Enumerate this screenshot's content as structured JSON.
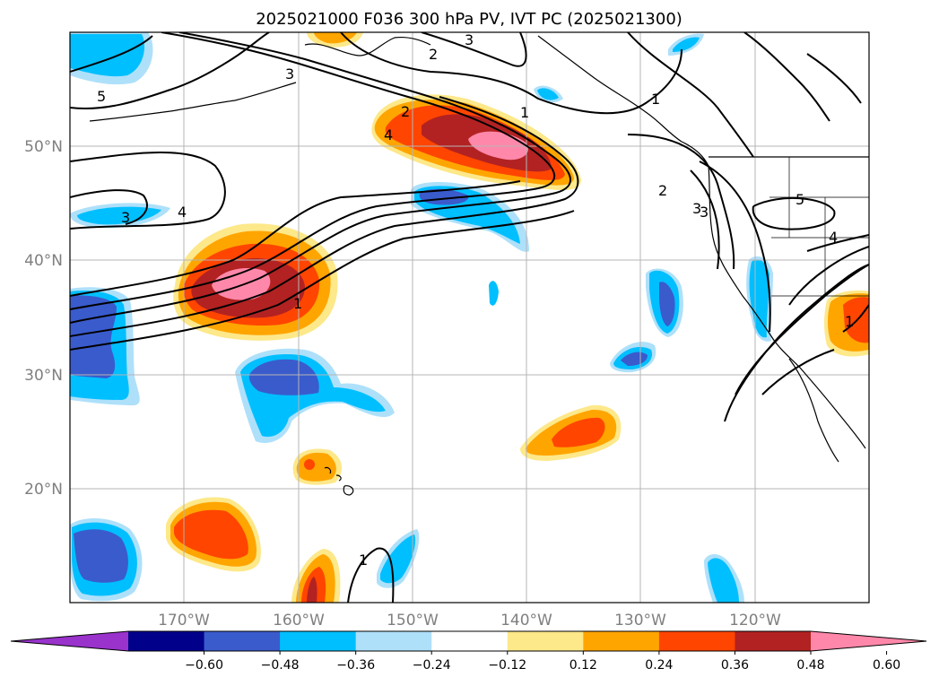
{
  "title": "2025021000 F036 300 hPa PV, IVT PC (2025021300)",
  "map": {
    "lon_ticks": [
      "170°W",
      "160°W",
      "150°W",
      "140°W",
      "130°W",
      "120°W"
    ],
    "lat_ticks": [
      "50°N",
      "40°N",
      "30°N",
      "20°N"
    ],
    "grid": true
  },
  "colorbar": {
    "ticks": [
      "−0.60",
      "−0.48",
      "−0.36",
      "−0.24",
      "−0.12",
      "0.12",
      "0.24",
      "0.36",
      "0.48",
      "0.60"
    ],
    "colors": [
      "#9933cc",
      "#00008b",
      "#3a5bcc",
      "#00bfff",
      "#aee0fa",
      "#ffffff",
      "#fde88a",
      "#ffa500",
      "#ff4500",
      "#b22222",
      "#ff88aa"
    ],
    "extend": "both"
  },
  "contour_labels": [
    "3",
    "2",
    "5",
    "3",
    "1",
    "2",
    "4",
    "3",
    "4",
    "1",
    "3",
    "1",
    "2",
    "3",
    "5",
    "4",
    "1",
    "1"
  ]
}
